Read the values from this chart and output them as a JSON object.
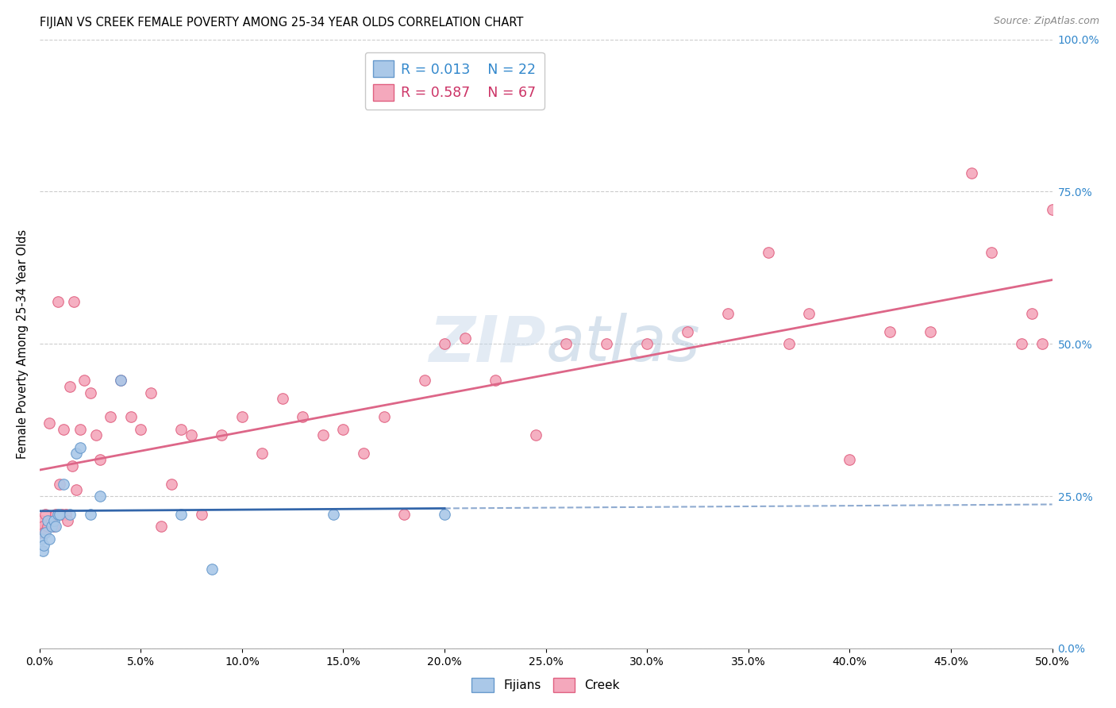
{
  "title": "FIJIAN VS CREEK FEMALE POVERTY AMONG 25-34 YEAR OLDS CORRELATION CHART",
  "source": "Source: ZipAtlas.com",
  "ylabel": "Female Poverty Among 25-34 Year Olds",
  "xtick_vals": [
    0,
    5,
    10,
    15,
    20,
    25,
    30,
    35,
    40,
    45,
    50
  ],
  "xtick_labels": [
    "0.0%",
    "5.0%",
    "10.0%",
    "15.0%",
    "20.0%",
    "25.0%",
    "30.0%",
    "35.0%",
    "40.0%",
    "45.0%",
    "50.0%"
  ],
  "ytick_vals": [
    0,
    25,
    50,
    75,
    100
  ],
  "ytick_labels": [
    "0.0%",
    "25.0%",
    "50.0%",
    "75.0%",
    "100.0%"
  ],
  "xlim": [
    0,
    50
  ],
  "ylim": [
    0,
    100
  ],
  "fijian_color": "#aac8e8",
  "creek_color": "#f4a8bc",
  "fijian_edge": "#6699cc",
  "creek_edge": "#e06080",
  "fijian_line_color": "#3366aa",
  "creek_line_color": "#dd6688",
  "legend_text_color_fijian": "#3388cc",
  "legend_text_color_creek": "#cc3366",
  "watermark_color": "#c8d8ea",
  "fijian_x": [
    0.1,
    0.15,
    0.2,
    0.3,
    0.4,
    0.5,
    0.6,
    0.7,
    0.8,
    0.9,
    1.0,
    1.2,
    1.5,
    1.8,
    2.0,
    2.5,
    3.0,
    4.0,
    7.0,
    8.5,
    14.5,
    20.0
  ],
  "fijian_y": [
    18,
    16,
    17,
    19,
    21,
    18,
    20,
    21,
    20,
    22,
    22,
    27,
    22,
    32,
    33,
    22,
    25,
    44,
    22,
    13,
    22,
    22
  ],
  "creek_x": [
    0.05,
    0.1,
    0.15,
    0.2,
    0.3,
    0.4,
    0.5,
    0.6,
    0.7,
    0.8,
    0.9,
    1.0,
    1.1,
    1.2,
    1.3,
    1.4,
    1.5,
    1.6,
    1.7,
    1.8,
    2.0,
    2.2,
    2.5,
    2.8,
    3.0,
    3.5,
    4.0,
    4.5,
    5.0,
    5.5,
    6.0,
    6.5,
    7.0,
    7.5,
    8.0,
    9.0,
    10.0,
    11.0,
    12.0,
    13.0,
    14.0,
    15.0,
    16.0,
    17.0,
    18.0,
    19.0,
    20.0,
    21.0,
    22.5,
    24.5,
    26.0,
    28.0,
    30.0,
    32.0,
    34.0,
    36.0,
    37.0,
    38.0,
    40.0,
    42.0,
    44.0,
    46.0,
    47.0,
    48.5,
    49.0,
    49.5,
    50.0
  ],
  "creek_y": [
    19,
    21,
    20,
    19,
    22,
    20,
    37,
    21,
    20,
    22,
    57,
    27,
    22,
    36,
    22,
    21,
    43,
    30,
    57,
    26,
    36,
    44,
    42,
    35,
    31,
    38,
    44,
    38,
    36,
    42,
    20,
    27,
    36,
    35,
    22,
    35,
    38,
    32,
    41,
    38,
    35,
    36,
    32,
    38,
    22,
    44,
    50,
    51,
    44,
    35,
    50,
    50,
    50,
    52,
    55,
    65,
    50,
    55,
    31,
    52,
    52,
    78,
    65,
    50,
    55,
    50,
    72
  ]
}
